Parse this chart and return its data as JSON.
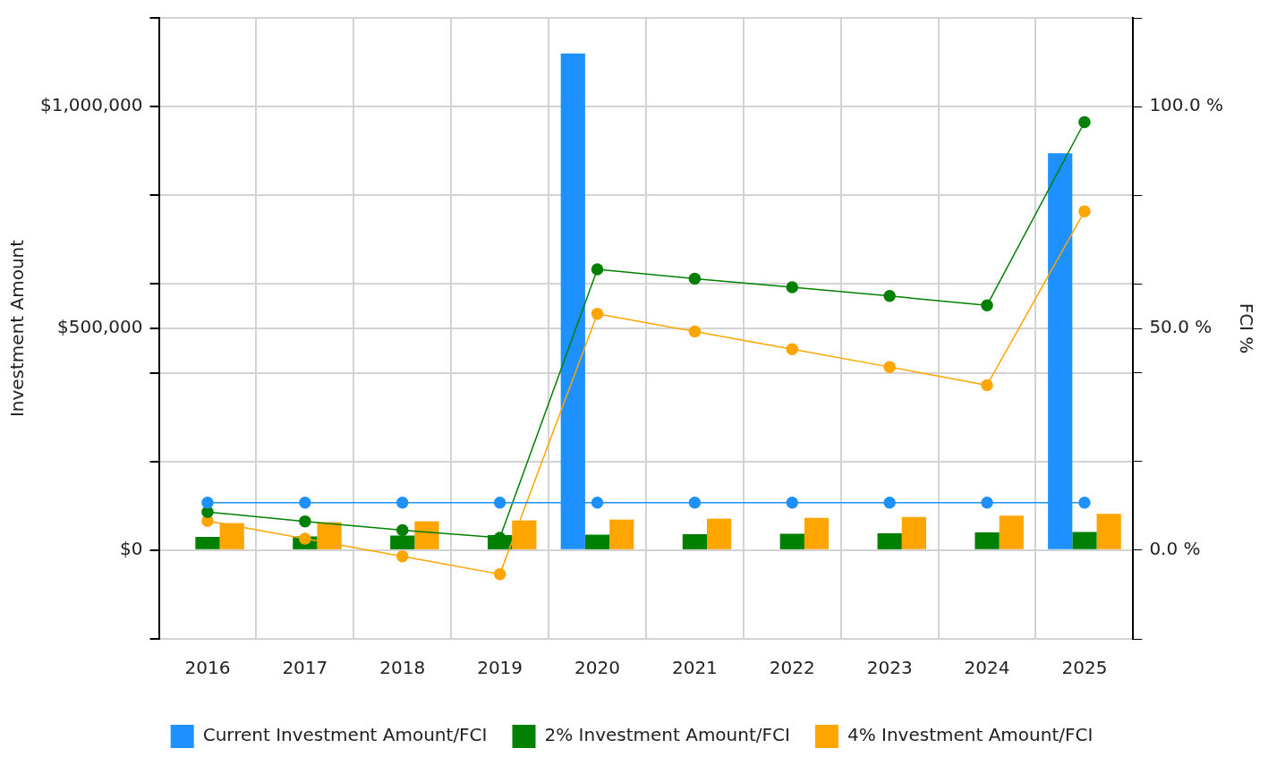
{
  "chart_data": {
    "type": "bar",
    "categories": [
      "2016",
      "2017",
      "2018",
      "2019",
      "2020",
      "2021",
      "2022",
      "2023",
      "2024",
      "2025"
    ],
    "ylabel": "Investment Amount",
    "y2label": "FCI %",
    "ylim": [
      -200000,
      1200000
    ],
    "yticks": [
      {
        "value": -200000,
        "label": null
      },
      {
        "value": 0,
        "label": "$0"
      },
      {
        "value": 200000,
        "label": null
      },
      {
        "value": 400000,
        "label": null
      },
      {
        "value": 500000,
        "label": "$500,000"
      },
      {
        "value": 600000,
        "label": null
      },
      {
        "value": 800000,
        "label": null
      },
      {
        "value": 1000000,
        "label": "$1,000,000"
      },
      {
        "value": 1200000,
        "label": null
      }
    ],
    "y2lim": [
      -20,
      120
    ],
    "y2ticks": [
      {
        "value": -20,
        "label": null
      },
      {
        "value": 0,
        "label": "0.0 %"
      },
      {
        "value": 20,
        "label": null
      },
      {
        "value": 40,
        "label": null
      },
      {
        "value": 50,
        "label": "50.0 %"
      },
      {
        "value": 60,
        "label": null
      },
      {
        "value": 80,
        "label": null
      },
      {
        "value": 100,
        "label": "100.0 %"
      },
      {
        "value": 120,
        "label": null
      }
    ],
    "grid": true,
    "legend": "bottom",
    "marker": "circle",
    "series": [
      {
        "name": "Current Investment Amount/FCI",
        "color": "#1e90ff",
        "values": [
          0,
          0,
          0,
          0,
          1120000,
          0,
          0,
          0,
          0,
          895000
        ]
      },
      {
        "name": "2% Investment Amount/FCI",
        "color": "#008000",
        "values": [
          30000,
          31000,
          33000,
          34000,
          35000,
          36000,
          37000,
          38000,
          40000,
          41000
        ]
      },
      {
        "name": "4% Investment Amount/FCI",
        "color": "#ffa500",
        "values": [
          61000,
          63000,
          65000,
          67000,
          69000,
          71000,
          73000,
          75000,
          78000,
          82000
        ]
      },
      {
        "type": "line",
        "axis": "y2",
        "color": "#1e90ff",
        "values": [
          10.7,
          10.7,
          10.7,
          10.7,
          10.7,
          10.7,
          10.7,
          10.7,
          10.7,
          10.7
        ]
      },
      {
        "type": "line",
        "axis": "y2",
        "color": "#008000",
        "values": [
          8.6,
          6.5,
          4.5,
          2.8,
          63.3,
          61.2,
          59.3,
          57.3,
          55.2,
          96.5
        ]
      },
      {
        "type": "line",
        "axis": "y2",
        "color": "#ffa500",
        "values": [
          6.6,
          2.6,
          -1.4,
          -5.4,
          53.3,
          49.3,
          45.3,
          41.3,
          37.2,
          76.4
        ]
      }
    ]
  }
}
